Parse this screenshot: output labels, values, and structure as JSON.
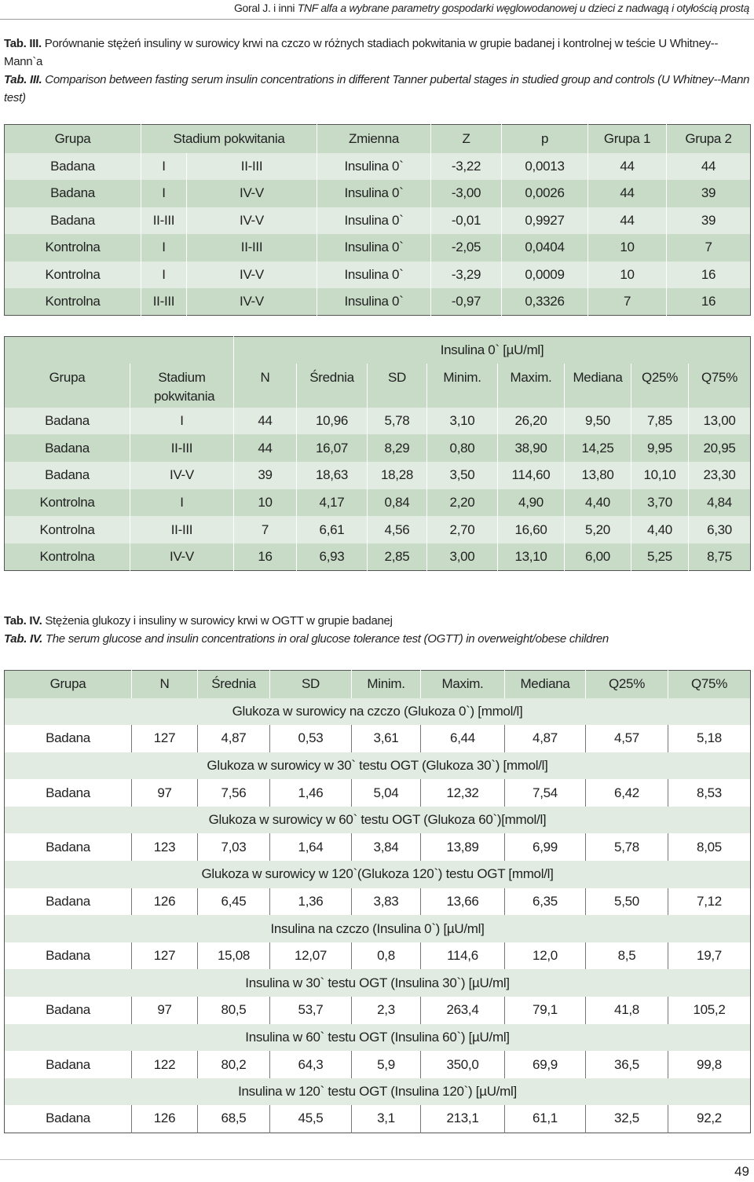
{
  "header": {
    "authors": "Goral J. i inni",
    "running_title": "TNF alfa a wybrane parametry gospodarki węglowodanowej u dzieci z nadwagą i otyłością prostą"
  },
  "table3": {
    "caption_pl_label": "Tab. III.",
    "caption_pl_text": "Porównanie stężeń insuliny w surowicy krwi na czczo w różnych stadiach pokwitania w grupie badanej i kontrolnej w teście U Whitney--Mann`a",
    "caption_en_label": "Tab. III.",
    "caption_en_text": "Comparison between fasting serum insulin concentrations in different Tanner pubertal stages in studied group and controls (U Whitney--Mann test)",
    "columns": [
      "Grupa",
      "Stadium pokwitania",
      "Zmienna",
      "Z",
      "p",
      "Grupa 1",
      "Grupa 2"
    ],
    "rows": [
      [
        "Badana",
        "I",
        "II-III",
        "Insulina 0`",
        "-3,22",
        "0,0013",
        "44",
        "44"
      ],
      [
        "Badana",
        "I",
        "IV-V",
        "Insulina 0`",
        "-3,00",
        "0,0026",
        "44",
        "39"
      ],
      [
        "Badana",
        "II-III",
        "IV-V",
        "Insulina 0`",
        "-0,01",
        "0,9927",
        "44",
        "39"
      ],
      [
        "Kontrolna",
        "I",
        "II-III",
        "Insulina 0`",
        "-2,05",
        "0,0404",
        "10",
        "7"
      ],
      [
        "Kontrolna",
        "I",
        "IV-V",
        "Insulina 0`",
        "-3,29",
        "0,0009",
        "10",
        "16"
      ],
      [
        "Kontrolna",
        "II-III",
        "IV-V",
        "Insulina 0`",
        "-0,97",
        "0,3326",
        "7",
        "16"
      ]
    ]
  },
  "table3b": {
    "group_header": "Insulina 0` [µU/ml]",
    "columns": [
      "Grupa",
      "Stadium pokwitania",
      "N",
      "Średnia",
      "SD",
      "Minim.",
      "Maxim.",
      "Mediana",
      "Q25%",
      "Q75%"
    ],
    "rows": [
      [
        "Badana",
        "I",
        "44",
        "10,96",
        "5,78",
        "3,10",
        "26,20",
        "9,50",
        "7,85",
        "13,00"
      ],
      [
        "Badana",
        "II-III",
        "44",
        "16,07",
        "8,29",
        "0,80",
        "38,90",
        "14,25",
        "9,95",
        "20,95"
      ],
      [
        "Badana",
        "IV-V",
        "39",
        "18,63",
        "18,28",
        "3,50",
        "114,60",
        "13,80",
        "10,10",
        "23,30"
      ],
      [
        "Kontrolna",
        "I",
        "10",
        "4,17",
        "0,84",
        "2,20",
        "4,90",
        "4,40",
        "3,70",
        "4,84"
      ],
      [
        "Kontrolna",
        "II-III",
        "7",
        "6,61",
        "4,56",
        "2,70",
        "16,60",
        "5,20",
        "4,40",
        "6,30"
      ],
      [
        "Kontrolna",
        "IV-V",
        "16",
        "6,93",
        "2,85",
        "3,00",
        "13,10",
        "6,00",
        "5,25",
        "8,75"
      ]
    ]
  },
  "table4": {
    "caption_pl_label": "Tab. IV.",
    "caption_pl_text": "Stężenia glukozy i insuliny w surowicy krwi w OGTT w grupie badanej",
    "caption_en_label": "Tab. IV.",
    "caption_en_text": "The serum glucose and insulin concentrations in oral glucose tolerance test (OGTT) in overweight/obese children",
    "columns": [
      "Grupa",
      "N",
      "Średnia",
      "SD",
      "Minim.",
      "Maxim.",
      "Mediana",
      "Q25%",
      "Q75%"
    ],
    "sections": [
      {
        "title": "Glukoza w surowicy na czczo (Glukoza 0`) [mmol/l]",
        "row": [
          "Badana",
          "127",
          "4,87",
          "0,53",
          "3,61",
          "6,44",
          "4,87",
          "4,57",
          "5,18"
        ]
      },
      {
        "title": "Glukoza w surowicy w 30` testu OGT (Glukoza 30`) [mmol/l]",
        "row": [
          "Badana",
          "97",
          "7,56",
          "1,46",
          "5,04",
          "12,32",
          "7,54",
          "6,42",
          "8,53"
        ]
      },
      {
        "title": "Glukoza w surowicy w 60` testu OGT (Glukoza 60`)[mmol/l]",
        "row": [
          "Badana",
          "123",
          "7,03",
          "1,64",
          "3,84",
          "13,89",
          "6,99",
          "5,78",
          "8,05"
        ]
      },
      {
        "title": "Glukoza w surowicy w 120`(Glukoza 120`) testu OGT [mmol/l]",
        "row": [
          "Badana",
          "126",
          "6,45",
          "1,36",
          "3,83",
          "13,66",
          "6,35",
          "5,50",
          "7,12"
        ]
      },
      {
        "title": "Insulina na czczo (Insulina 0`) [µU/ml]",
        "row": [
          "Badana",
          "127",
          "15,08",
          "12,07",
          "0,8",
          "114,6",
          "12,0",
          "8,5",
          "19,7"
        ]
      },
      {
        "title": "Insulina  w 30` testu OGT (Insulina 30`) [µU/ml]",
        "row": [
          "Badana",
          "97",
          "80,5",
          "53,7",
          "2,3",
          "263,4",
          "79,1",
          "41,8",
          "105,2"
        ]
      },
      {
        "title": "Insulina  w 60` testu OGT (Insulina 60`) [µU/ml]",
        "row": [
          "Badana",
          "122",
          "80,2",
          "64,3",
          "5,9",
          "350,0",
          "69,9",
          "36,5",
          "99,8"
        ]
      },
      {
        "title": "Insulina  w 120` testu OGT (Insulina 120`) [µU/ml]",
        "row": [
          "Badana",
          "126",
          "68,5",
          "45,5",
          "3,1",
          "213,1",
          "61,1",
          "32,5",
          "92,2"
        ]
      }
    ]
  },
  "footer": {
    "page_number": "49"
  }
}
